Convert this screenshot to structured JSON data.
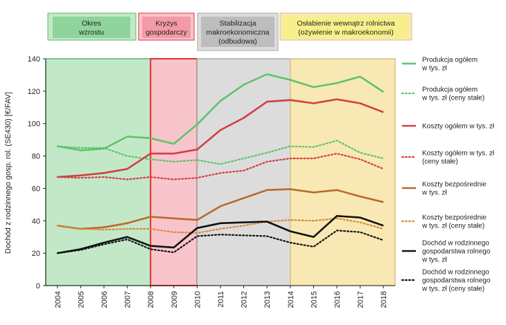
{
  "chart_data": {
    "type": "line",
    "xlabel": "",
    "ylabel": "Dochód z rodzinnego gosp. rol. (SE430) [€/FAV]",
    "ylim": [
      0,
      140
    ],
    "yticks": [
      0,
      20,
      40,
      60,
      80,
      100,
      120,
      140
    ],
    "x": [
      2004,
      2005,
      2006,
      2007,
      2008,
      2009,
      2010,
      2011,
      2012,
      2013,
      2014,
      2015,
      2016,
      2017,
      2018
    ],
    "xtick_labels": [
      "2004",
      "2005",
      "2006",
      "2007",
      "2008",
      "2009",
      "2010",
      "2011",
      "2012",
      "2013",
      "2014",
      "2015",
      "2016",
      "2017",
      "2018"
    ],
    "phases": [
      {
        "label": [
          "Okres",
          "wzrostu"
        ],
        "start": 2003.5,
        "end": 2008.0,
        "color": "#c3e8c8",
        "border": "#5cb85c",
        "badge": "#8fd49a"
      },
      {
        "label": [
          "Kryzys",
          "gospodarczy"
        ],
        "start": 2008.0,
        "end": 2010.0,
        "color": "#f8c5cd",
        "border": "#e03030",
        "badge": "#f29aa5"
      },
      {
        "label": [
          "Stabilizacja",
          "makroekonomiczna",
          "(odbudowa)"
        ],
        "start": 2010.0,
        "end": 2014.0,
        "color": "#dcdcdc",
        "border": "#a8a8a8",
        "badge": "#bdbdbd"
      },
      {
        "label": [
          "Osłabienie wewnątrz rolnictwa",
          "(ożywienie w makroekonomii)"
        ],
        "start": 2014.0,
        "end": 2018.5,
        "color": "#f8e8b4",
        "border": "#d8c080",
        "badge": "#f7f08a"
      }
    ],
    "series": [
      {
        "name": "Produkcja ogółem w tys. zł",
        "legend": [
          "Produkcja ogółem",
          "w tys. zł"
        ],
        "color": "#5cc46a",
        "dash": false,
        "values": [
          86,
          83.5,
          84.5,
          92,
          91,
          87.5,
          99.5,
          114,
          124,
          130.5,
          127,
          122.5,
          125,
          129,
          119.5
        ]
      },
      {
        "name": "Produkcja ogółem w tys. zł (ceny stałe)",
        "legend": [
          "Produkcja ogółem",
          "w tys. zł (ceny stałe)"
        ],
        "color": "#5cc46a",
        "dash": true,
        "values": [
          86,
          85,
          85,
          80,
          78,
          76.5,
          77.5,
          75,
          78.5,
          82,
          86,
          85.5,
          89.5,
          82,
          78.5
        ]
      },
      {
        "name": "Koszty ogółem w tys. zł",
        "legend": [
          "Koszty ogółem w tys. zł"
        ],
        "color": "#d23d44",
        "dash": false,
        "values": [
          67,
          68,
          69.5,
          72,
          81.5,
          81.5,
          84,
          96,
          103.5,
          113.5,
          114.5,
          112.5,
          115,
          112.5,
          107
        ]
      },
      {
        "name": "Koszty ogółem w tys. zł (ceny stałe)",
        "legend": [
          "Koszty ogółem w tys. zł",
          "(ceny stałe)"
        ],
        "color": "#d23d44",
        "dash": true,
        "values": [
          67,
          66.5,
          67,
          65.5,
          67,
          65.5,
          66.5,
          69.5,
          71,
          76.5,
          78.5,
          78.5,
          81.5,
          78,
          72
        ]
      },
      {
        "name": "Koszty bezpośrednie w tys. zł",
        "legend": [
          "Koszty bezpośrednie",
          "w tys. zł"
        ],
        "color": "#b86a2a",
        "dash": false,
        "values": [
          37,
          35,
          36,
          38.5,
          42.5,
          41.5,
          40.5,
          49,
          54,
          59,
          59.5,
          57.5,
          59,
          55,
          51.5
        ]
      },
      {
        "name": "Koszty bezpośrednie w tys. zł (ceny stałe)",
        "legend": [
          "Koszty bezpośrednie",
          "w tys. zł (ceny stałe)"
        ],
        "color": "#d98a3a",
        "dash": true,
        "values": [
          37,
          35,
          34.5,
          35,
          35,
          33,
          32.5,
          35,
          37,
          39.5,
          40.5,
          40,
          41.5,
          39,
          35
        ]
      },
      {
        "name": "Dochód w rodzinnego gospodarstwa rolnego w tys. zł",
        "legend": [
          "Dochód w rodzinnego",
          "gospodarstwa rolnego",
          "w tys. zł"
        ],
        "color": "#111111",
        "dash": false,
        "values": [
          20,
          22.5,
          26.5,
          30,
          24.5,
          23.5,
          35.5,
          38.5,
          39,
          39.5,
          33.5,
          30,
          43,
          42,
          37
        ]
      },
      {
        "name": "Dochód w rodzinnego gospodarstwa rolnego w tys. zł (ceny stałe)",
        "legend": [
          "Dochód w rodzinnego",
          "gospodarstwa rolnego",
          "w tys. zł (ceny stałe)"
        ],
        "color": "#111111",
        "dash": true,
        "values": [
          20,
          22,
          25.5,
          28.5,
          22.5,
          20.5,
          30.5,
          31.5,
          31,
          30.5,
          26.5,
          24,
          34,
          33,
          28
        ]
      }
    ]
  }
}
